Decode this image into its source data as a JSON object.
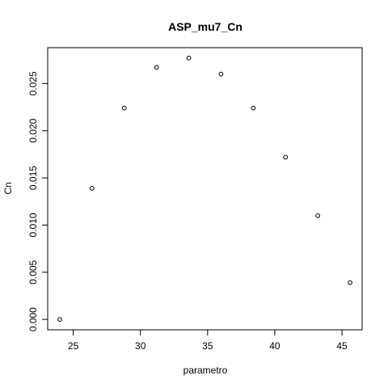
{
  "chart_data": {
    "type": "scatter",
    "title": "ASP_mu7_Cn",
    "xlabel": "parametro",
    "ylabel": "Cn",
    "xlim": [
      23.1,
      46.5
    ],
    "ylim": [
      -0.0011,
      0.0288
    ],
    "x_ticks": [
      25,
      30,
      35,
      40,
      45
    ],
    "x_tick_labels": [
      "25",
      "30",
      "35",
      "40",
      "45"
    ],
    "y_ticks": [
      0.0,
      0.005,
      0.01,
      0.015,
      0.02,
      0.025
    ],
    "y_tick_labels": [
      "0.000",
      "0.005",
      "0.010",
      "0.015",
      "0.020",
      "0.025"
    ],
    "grid": false,
    "marker": "open-circle",
    "x": [
      24.0,
      26.4,
      28.8,
      31.2,
      33.6,
      36.0,
      38.4,
      40.8,
      43.2,
      45.6
    ],
    "y": [
      0.0,
      0.0139,
      0.0224,
      0.0267,
      0.0277,
      0.026,
      0.0224,
      0.0172,
      0.011,
      0.0039
    ]
  }
}
